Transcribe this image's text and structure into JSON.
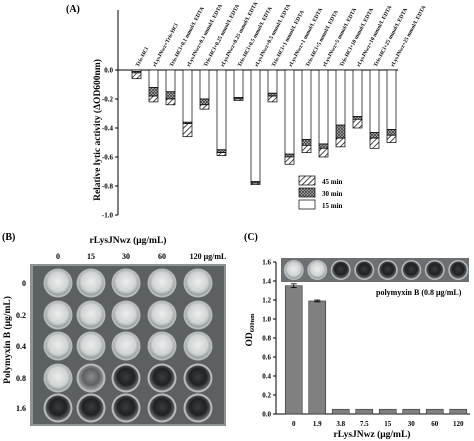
{
  "panels": {
    "a": "(A)",
    "b": "(B)",
    "c": "(C)"
  },
  "chart_data": [
    {
      "type": "bar",
      "stacked": true,
      "ylabel": "Relative lytic activity (ΔOD600nm)",
      "ylim": [
        -1.0,
        0.0
      ],
      "yticks": [
        "0.0",
        "-0.2",
        "-0.4",
        "-0.6",
        "-0.8",
        "-1.0"
      ],
      "categories": [
        "Tris-HCl",
        "rLysJNwz+Tris-HCl",
        "Tris-HCl+0.1 mmol/L EDTA",
        "rLysJNwz+0.1 mmol/L EDTA",
        "Tris-HCl+0.25 mmol/L EDTA",
        "rLysJNwz+0.25 mmol/L EDTA",
        "Tris-HCl+0.5 mmol/L EDTA",
        "rLysJNwz+0.5 mmol/L EDTA",
        "Tris-HCl+1 mmol/L EDTA",
        "rLysJNwz+1 mmol/L EDTA",
        "Tris-HCl+5 mmol/L EDTA",
        "rLysJNwz+5 mmol/L EDTA",
        "Tris-HCl+10 mmol/L EDTA",
        "rLysJNwz+10 mmol/L EDTA",
        "Tris-HCl+25 mmol/L EDTA",
        "rLysJNwz+25 mmol/L EDTA"
      ],
      "series": [
        {
          "name": "15 min",
          "values": [
            -0.01,
            -0.12,
            -0.15,
            -0.36,
            -0.2,
            -0.55,
            -0.19,
            -0.77,
            -0.16,
            -0.58,
            -0.48,
            -0.51,
            -0.38,
            -0.32,
            -0.43,
            -0.41
          ]
        },
        {
          "name": "30 min",
          "values": [
            -0.01,
            -0.06,
            -0.05,
            -0.01,
            -0.04,
            -0.02,
            -0.01,
            -0.01,
            -0.02,
            -0.02,
            -0.04,
            -0.03,
            -0.09,
            -0.02,
            -0.04,
            -0.04
          ]
        },
        {
          "name": "45 min",
          "values": [
            -0.04,
            -0.04,
            -0.04,
            -0.09,
            -0.03,
            -0.02,
            -0.01,
            -0.01,
            -0.04,
            -0.05,
            -0.05,
            -0.06,
            -0.06,
            -0.06,
            -0.07,
            -0.05
          ]
        }
      ],
      "legend": "bottom-right"
    },
    {
      "type": "bar",
      "xlabel": "rLysJNwz (μg/mL)",
      "ylabel": "OD600nm",
      "categories": [
        "0",
        "1.9",
        "3.8",
        "7.5",
        "15",
        "30",
        "60",
        "120"
      ],
      "values": [
        1.35,
        1.19,
        0.05,
        0.05,
        0.05,
        0.05,
        0.05,
        0.05
      ],
      "error": [
        0.02,
        0.01,
        0,
        0,
        0,
        0,
        0,
        0
      ],
      "ylim": [
        0,
        1.6
      ],
      "yticks": [
        "0.0",
        "0.2",
        "0.4",
        "0.6",
        "0.8",
        "1.0",
        "1.2",
        "1.4",
        "1.6"
      ],
      "annotation": "polymyxin B (0.8 μg/mL)"
    }
  ],
  "panel_b": {
    "title": "rLysJNwz (μg/mL)",
    "row_label": "Polymyxin B (μg/mL)",
    "columns": [
      "0",
      "15",
      "30",
      "60",
      "120 μg/mL"
    ],
    "rows": [
      "0",
      "0.2",
      "0.4",
      "0.8",
      "1.6"
    ]
  },
  "colors": {
    "bar_c": "#808080",
    "plate_bg": "#5a5d60",
    "plate_frame": "#9da2a5"
  }
}
